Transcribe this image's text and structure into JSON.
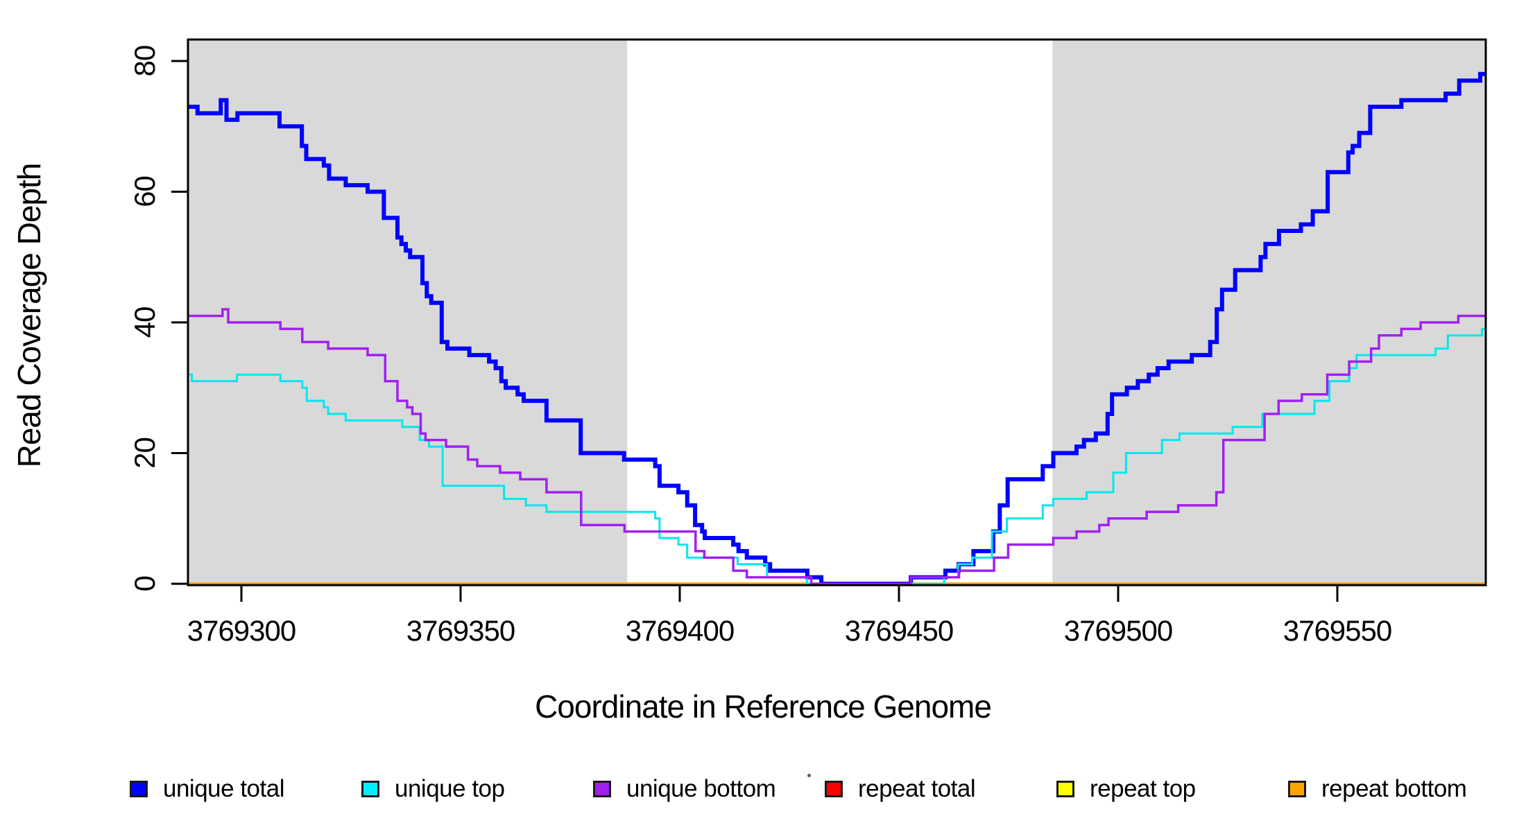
{
  "chart_data": {
    "type": "line",
    "subtype": "step",
    "title": "",
    "xlabel": "Coordinate in Reference Genome",
    "ylabel": "Read Coverage Depth",
    "xlim": [
      3769288,
      3769584
    ],
    "ylim": [
      0,
      83.3
    ],
    "x_ticks": [
      3769300,
      3769350,
      3769400,
      3769450,
      3769500,
      3769550
    ],
    "y_ticks": [
      0,
      20,
      40,
      60,
      80
    ],
    "grid": false,
    "background_color": "#ffffff",
    "plot_border_color": "#000000",
    "shaded_regions": [
      {
        "name": "left-gray-band",
        "x0": 3769288,
        "x1": 3769388,
        "color": "#d9d9d9"
      },
      {
        "name": "right-gray-band",
        "x0": 3769485,
        "x1": 3769584,
        "color": "#d9d9d9"
      }
    ],
    "legend_position": "bottom",
    "series": [
      {
        "name": "repeat total",
        "color": "#ff0000",
        "linewidth": 3,
        "points": [
          [
            3769288,
            0
          ]
        ]
      },
      {
        "name": "repeat top",
        "color": "#ffff00",
        "linewidth": 3,
        "points": [
          [
            3769288,
            0
          ]
        ]
      },
      {
        "name": "repeat bottom",
        "color": "#ffa500",
        "linewidth": 4,
        "points": [
          [
            3769288,
            0
          ]
        ]
      },
      {
        "name": "unique total",
        "color": "#0000ff",
        "linewidth": 6,
        "points": [
          [
            3769288,
            73
          ],
          [
            3769290,
            72
          ],
          [
            3769295.3,
            74
          ],
          [
            3769296.6,
            71
          ],
          [
            3769299.1,
            72
          ],
          [
            3769308.7,
            70
          ],
          [
            3769313.8,
            67
          ],
          [
            3769314.8,
            65
          ],
          [
            3769318.8,
            64
          ],
          [
            3769320,
            62
          ],
          [
            3769323.8,
            61
          ],
          [
            3769328.8,
            60
          ],
          [
            3769332.5,
            56
          ],
          [
            3769335.6,
            53
          ],
          [
            3769336.5,
            52
          ],
          [
            3769337.5,
            51
          ],
          [
            3769338.5,
            50
          ],
          [
            3769341.3,
            46
          ],
          [
            3769342.3,
            44
          ],
          [
            3769343.3,
            43
          ],
          [
            3769345.7,
            37
          ],
          [
            3769347,
            36
          ],
          [
            3769352,
            35
          ],
          [
            3769356.5,
            34
          ],
          [
            3769358,
            33
          ],
          [
            3769359.3,
            31
          ],
          [
            3769360.3,
            30
          ],
          [
            3769363,
            29
          ],
          [
            3769364.4,
            28
          ],
          [
            3769369.6,
            25
          ],
          [
            3769377.4,
            20
          ],
          [
            3769387.3,
            19
          ],
          [
            3769394.4,
            18
          ],
          [
            3769395.4,
            15
          ],
          [
            3769399.7,
            14
          ],
          [
            3769401.7,
            12
          ],
          [
            3769403.5,
            9
          ],
          [
            3769405.1,
            8
          ],
          [
            3769405.7,
            7
          ],
          [
            3769412.2,
            6
          ],
          [
            3769413.4,
            5
          ],
          [
            3769415.3,
            4
          ],
          [
            3769419.5,
            3
          ],
          [
            3769420.6,
            2
          ],
          [
            3769429.1,
            1
          ],
          [
            3769432.3,
            0
          ],
          [
            3769452.7,
            1
          ],
          [
            3769460.6,
            2
          ],
          [
            3769463.6,
            3
          ],
          [
            3769467,
            5
          ],
          [
            3769471.5,
            8
          ],
          [
            3769473,
            12
          ],
          [
            3769474.8,
            16
          ],
          [
            3769482.8,
            18
          ],
          [
            3769485.2,
            20
          ],
          [
            3769490.5,
            21
          ],
          [
            3769492.2,
            22
          ],
          [
            3769494.9,
            23
          ],
          [
            3769497.6,
            26
          ],
          [
            3769498.6,
            29
          ],
          [
            3769502,
            30
          ],
          [
            3769504.5,
            31
          ],
          [
            3769507,
            32
          ],
          [
            3769509,
            33
          ],
          [
            3769511.5,
            34
          ],
          [
            3769516.8,
            35
          ],
          [
            3769521,
            37
          ],
          [
            3769522.5,
            42
          ],
          [
            3769523.7,
            45
          ],
          [
            3769526.7,
            48
          ],
          [
            3769532.5,
            50
          ],
          [
            3769533.6,
            52
          ],
          [
            3769536.7,
            54
          ],
          [
            3769541.7,
            55
          ],
          [
            3769544.4,
            57
          ],
          [
            3769547.8,
            63
          ],
          [
            3769552.5,
            66
          ],
          [
            3769553.5,
            67
          ],
          [
            3769555,
            69
          ],
          [
            3769557.5,
            73
          ],
          [
            3769564.6,
            74
          ],
          [
            3769574.7,
            75
          ],
          [
            3769577.8,
            77
          ],
          [
            3769582.6,
            78
          ]
        ]
      },
      {
        "name": "unique top",
        "color": "#00e8ee",
        "linewidth": 3,
        "points": [
          [
            3769288,
            32
          ],
          [
            3769288.7,
            31
          ],
          [
            3769299,
            32
          ],
          [
            3769308.9,
            31
          ],
          [
            3769313.9,
            30
          ],
          [
            3769314.9,
            28
          ],
          [
            3769318.8,
            27
          ],
          [
            3769319.8,
            26
          ],
          [
            3769323.8,
            25
          ],
          [
            3769336.7,
            24
          ],
          [
            3769340.7,
            22
          ],
          [
            3769342.8,
            21
          ],
          [
            3769345.9,
            15
          ],
          [
            3769359.9,
            13
          ],
          [
            3769364.9,
            12
          ],
          [
            3769369.6,
            11
          ],
          [
            3769394.4,
            10
          ],
          [
            3769395.4,
            7
          ],
          [
            3769399.7,
            6
          ],
          [
            3769401.7,
            4
          ],
          [
            3769413.2,
            3
          ],
          [
            3769419.9,
            1
          ],
          [
            3769429,
            0
          ],
          [
            3769460.3,
            1
          ],
          [
            3769463.5,
            3
          ],
          [
            3769466.7,
            4
          ],
          [
            3769471.2,
            8
          ],
          [
            3769474.6,
            10
          ],
          [
            3769482.8,
            12
          ],
          [
            3769485.2,
            13
          ],
          [
            3769492.8,
            14
          ],
          [
            3769498.9,
            17
          ],
          [
            3769501.8,
            20
          ],
          [
            3769510,
            22
          ],
          [
            3769514,
            23
          ],
          [
            3769526.1,
            24
          ],
          [
            3769532.9,
            26
          ],
          [
            3769544.8,
            28
          ],
          [
            3769548.2,
            31
          ],
          [
            3769552.7,
            33
          ],
          [
            3769554.4,
            35
          ],
          [
            3769572.4,
            36
          ],
          [
            3769575.2,
            38
          ],
          [
            3769583,
            39
          ]
        ]
      },
      {
        "name": "unique bottom",
        "color": "#a020f0",
        "linewidth": 3.5,
        "points": [
          [
            3769288,
            41
          ],
          [
            3769295.7,
            42
          ],
          [
            3769297,
            40
          ],
          [
            3769308.9,
            39
          ],
          [
            3769313.9,
            37
          ],
          [
            3769319.8,
            36
          ],
          [
            3769328.8,
            35
          ],
          [
            3769332.8,
            31
          ],
          [
            3769335.6,
            28
          ],
          [
            3769337.8,
            27
          ],
          [
            3769339,
            26
          ],
          [
            3769340.9,
            23
          ],
          [
            3769342,
            22
          ],
          [
            3769346.7,
            21
          ],
          [
            3769351.7,
            19
          ],
          [
            3769353.8,
            18
          ],
          [
            3769359,
            17
          ],
          [
            3769363.6,
            16
          ],
          [
            3769369.6,
            14
          ],
          [
            3769377.5,
            9
          ],
          [
            3769387.4,
            8
          ],
          [
            3769403.6,
            5
          ],
          [
            3769405.6,
            4
          ],
          [
            3769412.2,
            2
          ],
          [
            3769415.3,
            1
          ],
          [
            3769430,
            0
          ],
          [
            3769452.7,
            1
          ],
          [
            3769463.7,
            2
          ],
          [
            3769471.7,
            4
          ],
          [
            3769474.9,
            6
          ],
          [
            3769485.2,
            7
          ],
          [
            3769490.5,
            8
          ],
          [
            3769495.7,
            9
          ],
          [
            3769497.8,
            10
          ],
          [
            3769506.5,
            11
          ],
          [
            3769513.7,
            12
          ],
          [
            3769522.4,
            14
          ],
          [
            3769524,
            22
          ],
          [
            3769533.4,
            26
          ],
          [
            3769536.6,
            28
          ],
          [
            3769541.9,
            29
          ],
          [
            3769547.7,
            32
          ],
          [
            3769552.7,
            34
          ],
          [
            3769557.7,
            36
          ],
          [
            3769559.5,
            38
          ],
          [
            3769564.6,
            39
          ],
          [
            3769569,
            40
          ],
          [
            3769577.6,
            41
          ]
        ]
      }
    ],
    "legend": [
      {
        "label": "unique total",
        "color": "#0000ff"
      },
      {
        "label": "unique top",
        "color": "#00eeff"
      },
      {
        "label": "unique bottom",
        "color": "#a020f0"
      },
      {
        "label": "repeat total",
        "color": "#ff0000"
      },
      {
        "label": "repeat top",
        "color": "#ffff00"
      },
      {
        "label": "repeat bottom",
        "color": "#ffa500"
      }
    ],
    "annotations": {
      "stray_dot_near_legend": true
    }
  }
}
